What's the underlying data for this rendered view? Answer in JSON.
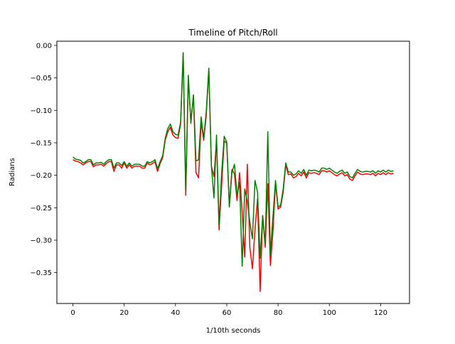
{
  "chart_data": {
    "type": "line",
    "title": "Timeline of Pitch/Roll",
    "xlabel": "1/10th seconds",
    "ylabel": "Radians",
    "xlim": [
      -6.25,
      131.25
    ],
    "ylim": [
      -0.3975,
      0.0065
    ],
    "xticks": [
      0,
      20,
      40,
      60,
      80,
      100,
      120
    ],
    "xtick_labels": [
      "0",
      "20",
      "40",
      "60",
      "80",
      "100",
      "120"
    ],
    "yticks": [
      0.0,
      -0.05,
      -0.1,
      -0.15,
      -0.2,
      -0.25,
      -0.3,
      -0.35
    ],
    "ytick_labels": [
      "0.00",
      "−0.05",
      "−0.10",
      "−0.15",
      "−0.20",
      "−0.25",
      "−0.30",
      "−0.35"
    ],
    "grid": false,
    "legend": "none",
    "series": [
      {
        "color": "#ff0000",
        "x": [
          0,
          1,
          2,
          3,
          4,
          5,
          6,
          7,
          8,
          9,
          10,
          11,
          12,
          13,
          14,
          15,
          16,
          17,
          18,
          19,
          20,
          21,
          22,
          23,
          24,
          25,
          26,
          27,
          28,
          29,
          30,
          31,
          32,
          33,
          34,
          35,
          36,
          37,
          38,
          39,
          40,
          41,
          42,
          43,
          44,
          45,
          46,
          47,
          48,
          49,
          50,
          51,
          52,
          53,
          54,
          55,
          56,
          57,
          58,
          59,
          60,
          61,
          62,
          63,
          64,
          65,
          66,
          67,
          68,
          69,
          70,
          71,
          72,
          73,
          74,
          75,
          76,
          77,
          78,
          79,
          80,
          81,
          82,
          83,
          84,
          85,
          86,
          87,
          88,
          89,
          90,
          91,
          92,
          93,
          94,
          95,
          96,
          97,
          98,
          99,
          100,
          101,
          102,
          103,
          104,
          105,
          106,
          107,
          108,
          109,
          110,
          111,
          112,
          113,
          114,
          115,
          116,
          117,
          118,
          119,
          120,
          121,
          122,
          123,
          124,
          125
        ],
        "y": [
          -0.176,
          -0.178,
          -0.179,
          -0.181,
          -0.184,
          -0.181,
          -0.179,
          -0.179,
          -0.187,
          -0.184,
          -0.184,
          -0.183,
          -0.186,
          -0.182,
          -0.179,
          -0.179,
          -0.194,
          -0.184,
          -0.184,
          -0.189,
          -0.181,
          -0.189,
          -0.184,
          -0.189,
          -0.186,
          -0.186,
          -0.186,
          -0.189,
          -0.189,
          -0.181,
          -0.184,
          -0.182,
          -0.179,
          -0.194,
          -0.182,
          -0.173,
          -0.146,
          -0.133,
          -0.126,
          -0.138,
          -0.142,
          -0.143,
          -0.121,
          -0.013,
          -0.231,
          -0.051,
          -0.117,
          -0.078,
          -0.196,
          -0.204,
          -0.118,
          -0.146,
          -0.108,
          -0.037,
          -0.186,
          -0.202,
          -0.146,
          -0.284,
          -0.215,
          -0.147,
          -0.151,
          -0.247,
          -0.191,
          -0.198,
          -0.239,
          -0.196,
          -0.257,
          -0.326,
          -0.183,
          -0.311,
          -0.344,
          -0.284,
          -0.236,
          -0.379,
          -0.262,
          -0.311,
          -0.213,
          -0.339,
          -0.287,
          -0.212,
          -0.252,
          -0.249,
          -0.226,
          -0.184,
          -0.199,
          -0.198,
          -0.204,
          -0.202,
          -0.197,
          -0.201,
          -0.195,
          -0.204,
          -0.196,
          -0.197,
          -0.196,
          -0.197,
          -0.199,
          -0.193,
          -0.193,
          -0.195,
          -0.193,
          -0.196,
          -0.199,
          -0.201,
          -0.198,
          -0.196,
          -0.201,
          -0.199,
          -0.206,
          -0.208,
          -0.201,
          -0.195,
          -0.198,
          -0.199,
          -0.198,
          -0.198,
          -0.199,
          -0.197,
          -0.201,
          -0.197,
          -0.199,
          -0.196,
          -0.199,
          -0.196,
          -0.198,
          -0.197
        ]
      },
      {
        "color": "#008000",
        "x": [
          0,
          1,
          2,
          3,
          4,
          5,
          6,
          7,
          8,
          9,
          10,
          11,
          12,
          13,
          14,
          15,
          16,
          17,
          18,
          19,
          20,
          21,
          22,
          23,
          24,
          25,
          26,
          27,
          28,
          29,
          30,
          31,
          32,
          33,
          34,
          35,
          36,
          37,
          38,
          39,
          40,
          41,
          42,
          43,
          44,
          45,
          46,
          47,
          48,
          49,
          50,
          51,
          52,
          53,
          54,
          55,
          56,
          57,
          58,
          59,
          60,
          61,
          62,
          63,
          64,
          65,
          66,
          67,
          68,
          69,
          70,
          71,
          72,
          73,
          74,
          75,
          76,
          77,
          78,
          79,
          80,
          81,
          82,
          83,
          84,
          85,
          86,
          87,
          88,
          89,
          90,
          91,
          92,
          93,
          94,
          95,
          96,
          97,
          98,
          99,
          100,
          101,
          102,
          103,
          104,
          105,
          106,
          107,
          108,
          109,
          110,
          111,
          112,
          113,
          114,
          115,
          116,
          117,
          118,
          119,
          120,
          121,
          122,
          123,
          124,
          125
        ],
        "y": [
          -0.172,
          -0.175,
          -0.176,
          -0.177,
          -0.181,
          -0.179,
          -0.176,
          -0.176,
          -0.184,
          -0.181,
          -0.181,
          -0.18,
          -0.183,
          -0.179,
          -0.176,
          -0.176,
          -0.189,
          -0.181,
          -0.181,
          -0.185,
          -0.179,
          -0.186,
          -0.181,
          -0.186,
          -0.183,
          -0.183,
          -0.183,
          -0.186,
          -0.186,
          -0.179,
          -0.181,
          -0.179,
          -0.176,
          -0.19,
          -0.179,
          -0.17,
          -0.143,
          -0.128,
          -0.121,
          -0.133,
          -0.137,
          -0.138,
          -0.118,
          -0.011,
          -0.225,
          -0.046,
          -0.12,
          -0.076,
          -0.178,
          -0.176,
          -0.11,
          -0.143,
          -0.102,
          -0.035,
          -0.186,
          -0.235,
          -0.138,
          -0.276,
          -0.196,
          -0.14,
          -0.149,
          -0.249,
          -0.196,
          -0.183,
          -0.231,
          -0.211,
          -0.34,
          -0.221,
          -0.24,
          -0.272,
          -0.298,
          -0.208,
          -0.226,
          -0.328,
          -0.262,
          -0.306,
          -0.133,
          -0.322,
          -0.264,
          -0.208,
          -0.249,
          -0.246,
          -0.221,
          -0.181,
          -0.195,
          -0.195,
          -0.2,
          -0.198,
          -0.193,
          -0.197,
          -0.191,
          -0.2,
          -0.192,
          -0.193,
          -0.192,
          -0.193,
          -0.195,
          -0.189,
          -0.189,
          -0.191,
          -0.189,
          -0.192,
          -0.195,
          -0.197,
          -0.194,
          -0.192,
          -0.197,
          -0.195,
          -0.202,
          -0.204,
          -0.197,
          -0.191,
          -0.194,
          -0.195,
          -0.194,
          -0.194,
          -0.195,
          -0.193,
          -0.197,
          -0.193,
          -0.195,
          -0.192,
          -0.195,
          -0.192,
          -0.194,
          -0.193
        ]
      }
    ]
  }
}
